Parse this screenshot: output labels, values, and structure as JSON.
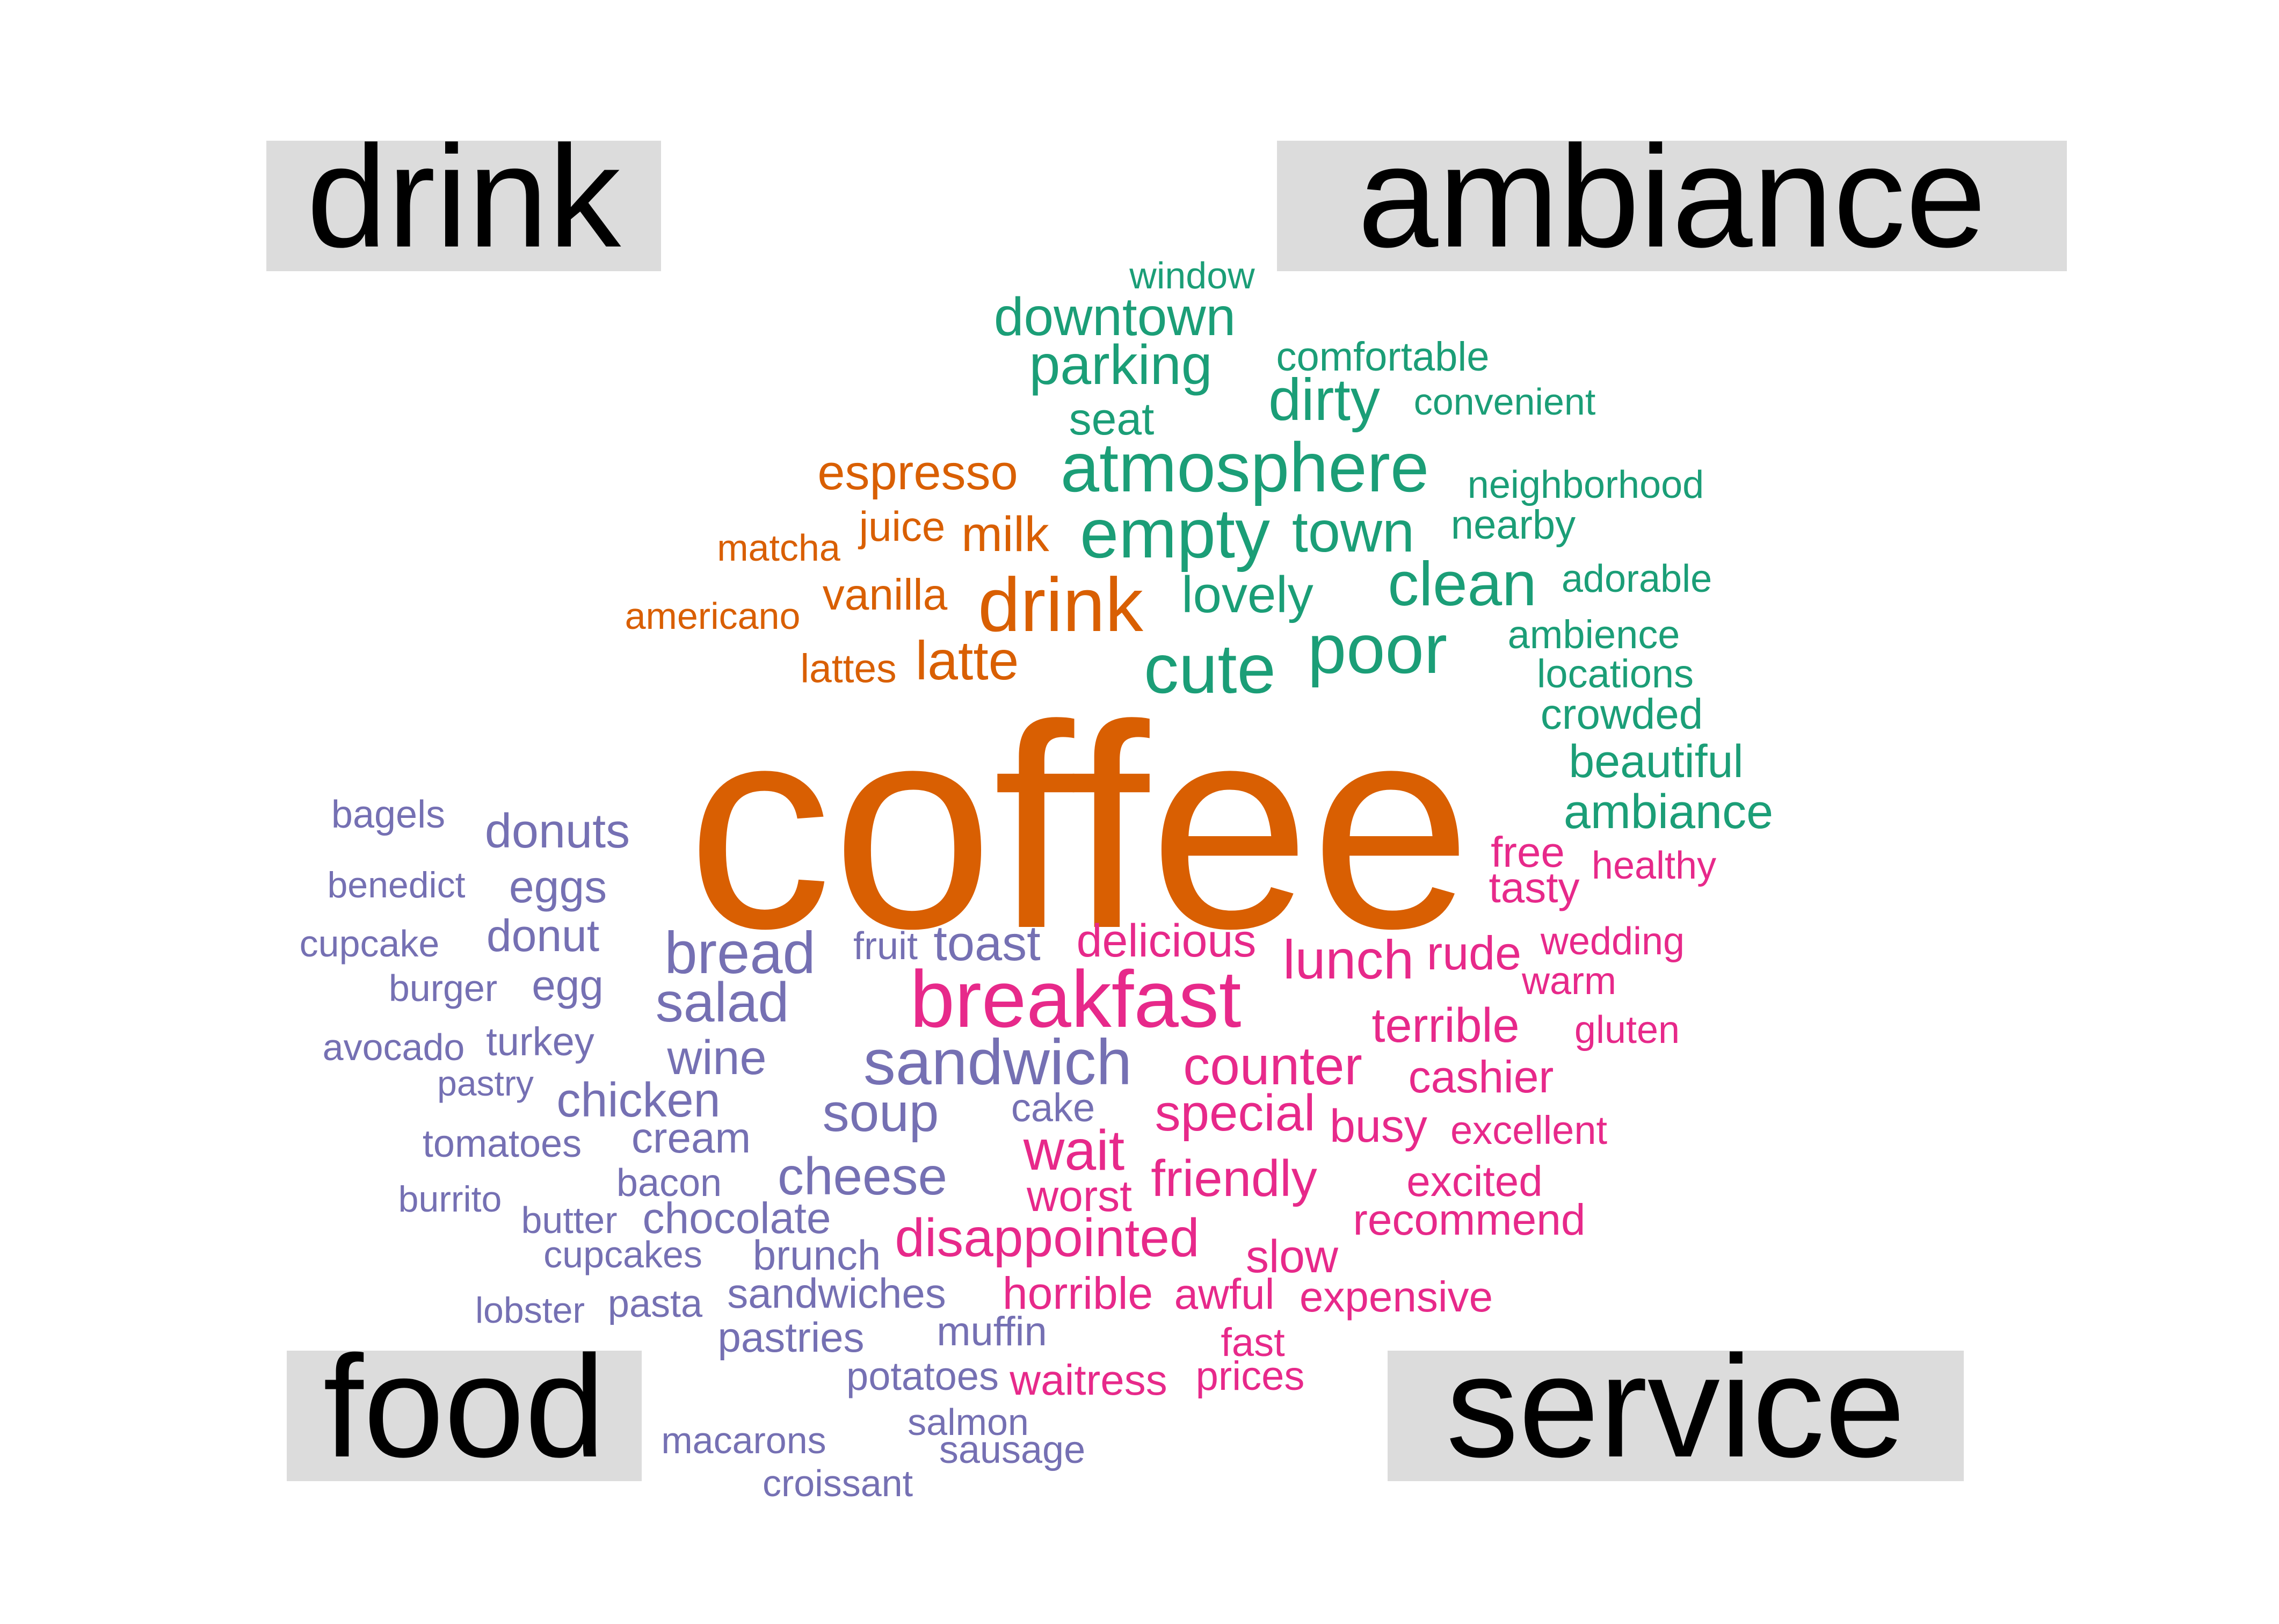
{
  "colors": {
    "drink": "#d95f02",
    "ambiance": "#1b9e77",
    "food": "#7570b3",
    "service": "#e7298a",
    "label_box": "#dcdcdc"
  },
  "labels": {
    "drink": "drink",
    "ambiance": "ambiance",
    "food": "food",
    "service": "service"
  },
  "words": [
    {
      "text": "coffee",
      "category": "drink"
    },
    {
      "text": "espresso",
      "category": "drink"
    },
    {
      "text": "juice",
      "category": "drink"
    },
    {
      "text": "milk",
      "category": "drink"
    },
    {
      "text": "matcha",
      "category": "drink"
    },
    {
      "text": "vanilla",
      "category": "drink"
    },
    {
      "text": "drink",
      "category": "drink"
    },
    {
      "text": "americano",
      "category": "drink"
    },
    {
      "text": "latte",
      "category": "drink"
    },
    {
      "text": "lattes",
      "category": "drink"
    },
    {
      "text": "window",
      "category": "ambiance"
    },
    {
      "text": "downtown",
      "category": "ambiance"
    },
    {
      "text": "parking",
      "category": "ambiance"
    },
    {
      "text": "comfortable",
      "category": "ambiance"
    },
    {
      "text": "dirty",
      "category": "ambiance"
    },
    {
      "text": "convenient",
      "category": "ambiance"
    },
    {
      "text": "seat",
      "category": "ambiance"
    },
    {
      "text": "atmosphere",
      "category": "ambiance"
    },
    {
      "text": "neighborhood",
      "category": "ambiance"
    },
    {
      "text": "empty",
      "category": "ambiance"
    },
    {
      "text": "town",
      "category": "ambiance"
    },
    {
      "text": "nearby",
      "category": "ambiance"
    },
    {
      "text": "clean",
      "category": "ambiance"
    },
    {
      "text": "adorable",
      "category": "ambiance"
    },
    {
      "text": "lovely",
      "category": "ambiance"
    },
    {
      "text": "poor",
      "category": "ambiance"
    },
    {
      "text": "ambience",
      "category": "ambiance"
    },
    {
      "text": "cute",
      "category": "ambiance"
    },
    {
      "text": "locations",
      "category": "ambiance"
    },
    {
      "text": "crowded",
      "category": "ambiance"
    },
    {
      "text": "beautiful",
      "category": "ambiance"
    },
    {
      "text": "ambiance",
      "category": "ambiance"
    },
    {
      "text": "bagels",
      "category": "food"
    },
    {
      "text": "donuts",
      "category": "food"
    },
    {
      "text": "benedict",
      "category": "food"
    },
    {
      "text": "eggs",
      "category": "food"
    },
    {
      "text": "cupcake",
      "category": "food"
    },
    {
      "text": "donut",
      "category": "food"
    },
    {
      "text": "bread",
      "category": "food"
    },
    {
      "text": "fruit",
      "category": "food"
    },
    {
      "text": "toast",
      "category": "food"
    },
    {
      "text": "burger",
      "category": "food"
    },
    {
      "text": "egg",
      "category": "food"
    },
    {
      "text": "salad",
      "category": "food"
    },
    {
      "text": "avocado",
      "category": "food"
    },
    {
      "text": "turkey",
      "category": "food"
    },
    {
      "text": "wine",
      "category": "food"
    },
    {
      "text": "sandwich",
      "category": "food"
    },
    {
      "text": "pastry",
      "category": "food"
    },
    {
      "text": "chicken",
      "category": "food"
    },
    {
      "text": "soup",
      "category": "food"
    },
    {
      "text": "cake",
      "category": "food"
    },
    {
      "text": "tomatoes",
      "category": "food"
    },
    {
      "text": "cream",
      "category": "food"
    },
    {
      "text": "bacon",
      "category": "food"
    },
    {
      "text": "cheese",
      "category": "food"
    },
    {
      "text": "burrito",
      "category": "food"
    },
    {
      "text": "butter",
      "category": "food"
    },
    {
      "text": "chocolate",
      "category": "food"
    },
    {
      "text": "cupcakes",
      "category": "food"
    },
    {
      "text": "brunch",
      "category": "food"
    },
    {
      "text": "sandwiches",
      "category": "food"
    },
    {
      "text": "lobster",
      "category": "food"
    },
    {
      "text": "pasta",
      "category": "food"
    },
    {
      "text": "pastries",
      "category": "food"
    },
    {
      "text": "muffin",
      "category": "food"
    },
    {
      "text": "potatoes",
      "category": "food"
    },
    {
      "text": "macarons",
      "category": "food"
    },
    {
      "text": "salmon",
      "category": "food"
    },
    {
      "text": "sausage",
      "category": "food"
    },
    {
      "text": "croissant",
      "category": "food"
    },
    {
      "text": "free",
      "category": "service"
    },
    {
      "text": "healthy",
      "category": "service"
    },
    {
      "text": "tasty",
      "category": "service"
    },
    {
      "text": "delicious",
      "category": "service"
    },
    {
      "text": "lunch",
      "category": "service"
    },
    {
      "text": "rude",
      "category": "service"
    },
    {
      "text": "wedding",
      "category": "service"
    },
    {
      "text": "warm",
      "category": "service"
    },
    {
      "text": "breakfast",
      "category": "service"
    },
    {
      "text": "terrible",
      "category": "service"
    },
    {
      "text": "gluten",
      "category": "service"
    },
    {
      "text": "counter",
      "category": "service"
    },
    {
      "text": "cashier",
      "category": "service"
    },
    {
      "text": "special",
      "category": "service"
    },
    {
      "text": "busy",
      "category": "service"
    },
    {
      "text": "excellent",
      "category": "service"
    },
    {
      "text": "wait",
      "category": "service"
    },
    {
      "text": "friendly",
      "category": "service"
    },
    {
      "text": "excited",
      "category": "service"
    },
    {
      "text": "worst",
      "category": "service"
    },
    {
      "text": "recommend",
      "category": "service"
    },
    {
      "text": "disappointed",
      "category": "service"
    },
    {
      "text": "slow",
      "category": "service"
    },
    {
      "text": "horrible",
      "category": "service"
    },
    {
      "text": "awful",
      "category": "service"
    },
    {
      "text": "expensive",
      "category": "service"
    },
    {
      "text": "fast",
      "category": "service"
    },
    {
      "text": "waitress",
      "category": "service"
    },
    {
      "text": "prices",
      "category": "service"
    }
  ]
}
